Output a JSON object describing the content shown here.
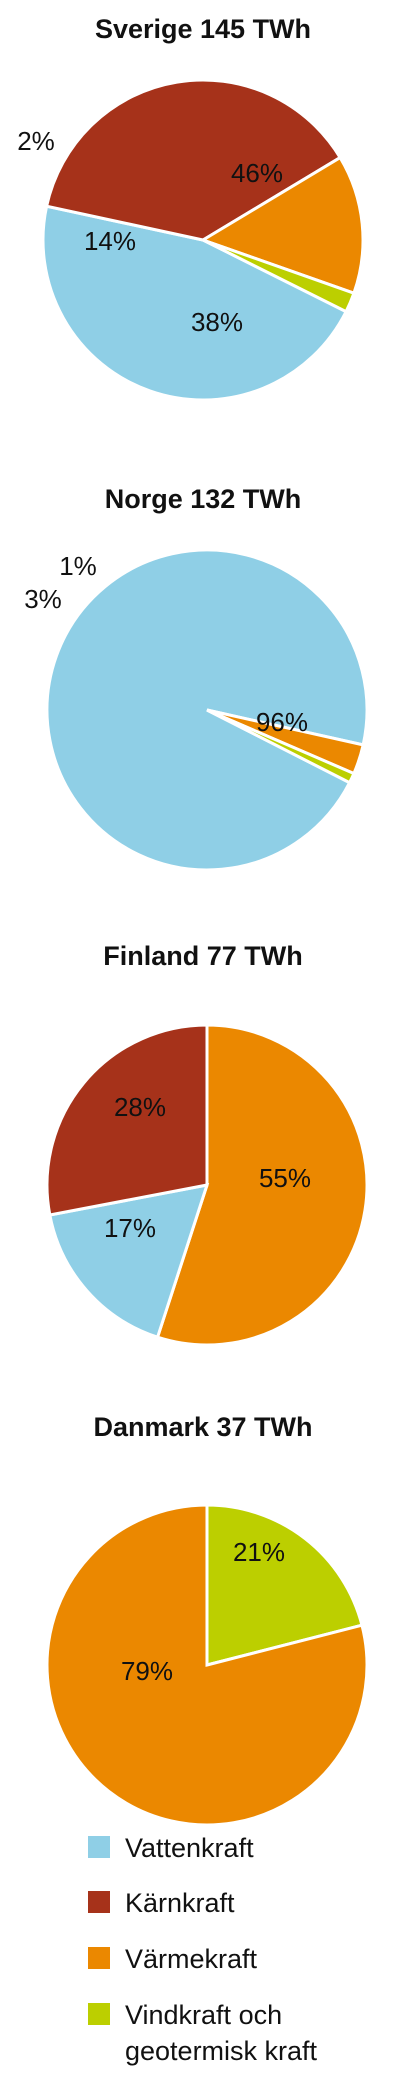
{
  "colors": {
    "vattenkraft": "#8fcfe6",
    "karnkraft": "#a6321a",
    "varmekraft": "#eb8800",
    "vindkraft": "#bccf00"
  },
  "legend": {
    "items": [
      {
        "key": "vattenkraft",
        "label": "Vattenkraft"
      },
      {
        "key": "karnkraft",
        "label": "Kärnkraft"
      },
      {
        "key": "varmekraft",
        "label": "Värmekraft"
      },
      {
        "key": "vindkraft",
        "label": "Vindkraft och",
        "label_line2": "geotermisk kraft"
      }
    ]
  },
  "chart_data": [
    {
      "type": "pie",
      "title": "Sverige 145 TWh",
      "slices": [
        {
          "key": "vattenkraft",
          "value": 46,
          "label": "46%"
        },
        {
          "key": "karnkraft",
          "value": 38,
          "label": "38%"
        },
        {
          "key": "varmekraft",
          "value": 14,
          "label": "14%"
        },
        {
          "key": "vindkraft",
          "value": 2,
          "label": "2%"
        }
      ]
    },
    {
      "type": "pie",
      "title": "Norge 132 TWh",
      "slices": [
        {
          "key": "vattenkraft",
          "value": 96,
          "label": "96%"
        },
        {
          "key": "varmekraft",
          "value": 3,
          "label": "3%"
        },
        {
          "key": "vindkraft",
          "value": 1,
          "label": "1%"
        }
      ]
    },
    {
      "type": "pie",
      "title": "Finland 77 TWh",
      "slices": [
        {
          "key": "varmekraft",
          "value": 55,
          "label": "55%"
        },
        {
          "key": "vattenkraft",
          "value": 17,
          "label": "17%"
        },
        {
          "key": "karnkraft",
          "value": 28,
          "label": "28%"
        }
      ]
    },
    {
      "type": "pie",
      "title": "Danmark 37 TWh",
      "slices": [
        {
          "key": "vindkraft",
          "value": 21,
          "label": "21%"
        },
        {
          "key": "varmekraft",
          "value": 79,
          "label": "79%"
        }
      ]
    }
  ]
}
